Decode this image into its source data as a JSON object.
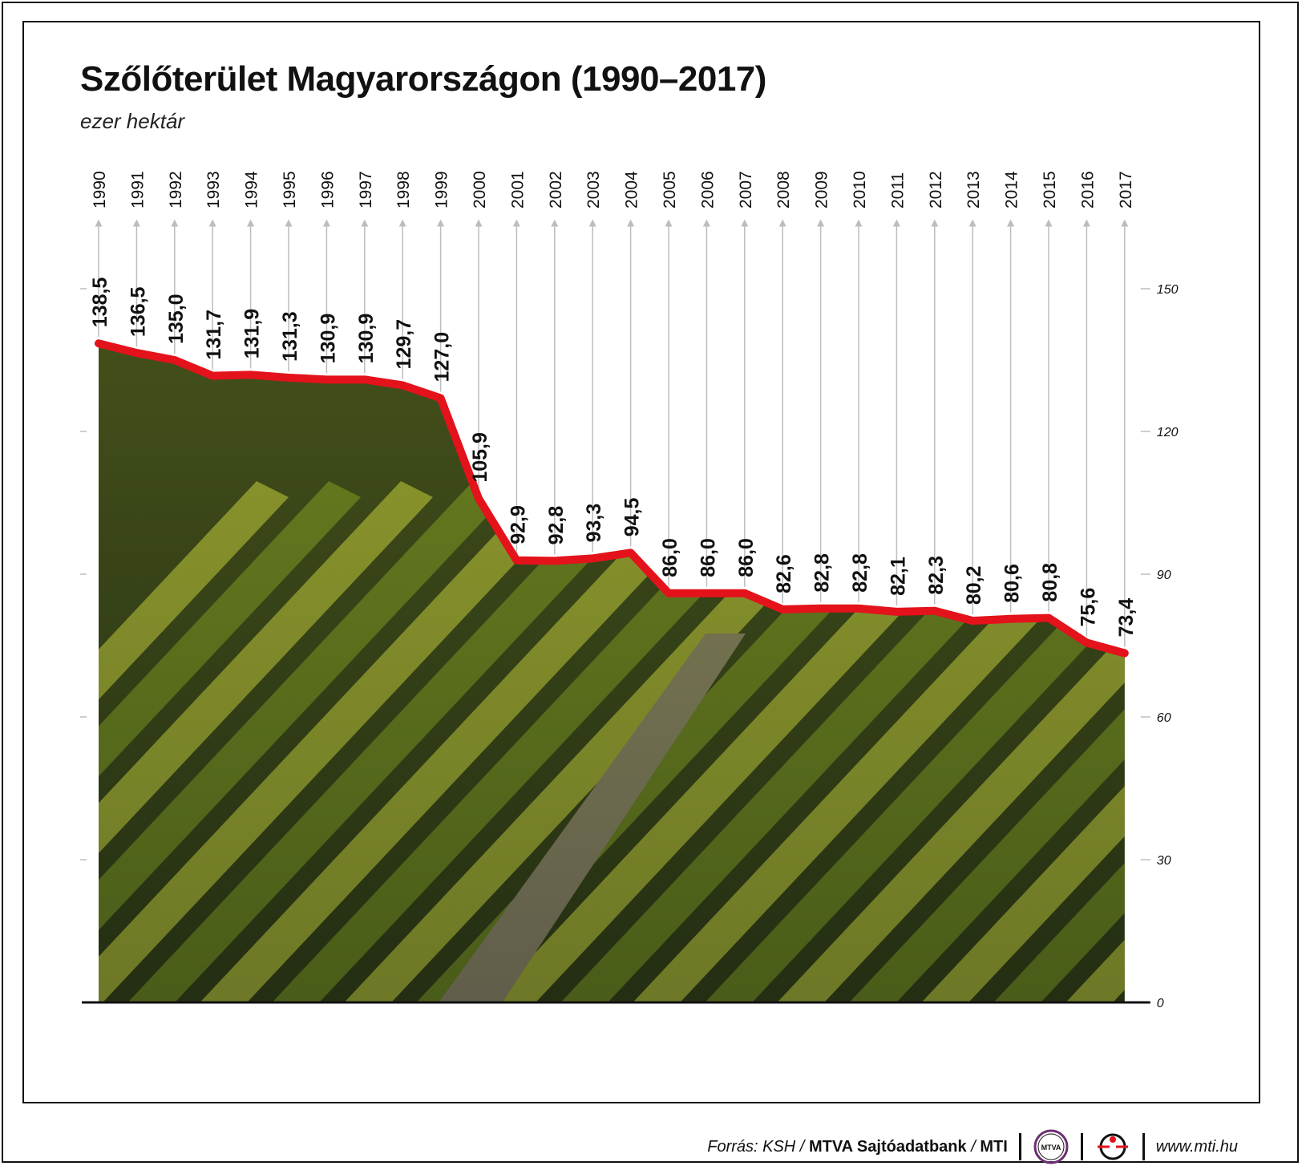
{
  "header": {
    "title": "Szőlőterület Magyarországon (1990–2017)",
    "subtitle": "ezer hektár"
  },
  "footer": {
    "source_prefix": "Forrás: KSH / ",
    "source_bold": "MTVA Sajtóadatbank",
    "source_sep": " / ",
    "source_mti": "MTI",
    "logo_text": "MTVA",
    "url": "www.mti.hu"
  },
  "colors": {
    "line": "#e3121b",
    "grid": "#bdbdbd",
    "text": "#111111",
    "vineyard_dark": "#1f2a12",
    "vineyard_green": "#6f8a1f",
    "vineyard_light": "#b9c23a",
    "wall": "#7d7468"
  },
  "chart_data": {
    "type": "line",
    "title": "Szőlőterület Magyarországon (1990–2017)",
    "ylabel": "ezer hektár",
    "x": [
      "1990",
      "1991",
      "1992",
      "1993",
      "1994",
      "1995",
      "1996",
      "1997",
      "1998",
      "1999",
      "2000",
      "2001",
      "2002",
      "2003",
      "2004",
      "2005",
      "2006",
      "2007",
      "2008",
      "2009",
      "2010",
      "2011",
      "2012",
      "2013",
      "2014",
      "2015",
      "2016",
      "2017"
    ],
    "values": [
      138.5,
      136.5,
      135.0,
      131.7,
      131.9,
      131.3,
      130.9,
      130.9,
      129.7,
      127.0,
      105.9,
      92.9,
      92.8,
      93.3,
      94.5,
      86.0,
      86.0,
      86.0,
      82.6,
      82.8,
      82.8,
      82.1,
      82.3,
      80.2,
      80.6,
      80.8,
      75.6,
      73.4
    ],
    "value_labels": [
      "138,5",
      "136,5",
      "135,0",
      "131,7",
      "131,9",
      "131,3",
      "130,9",
      "130,9",
      "129,7",
      "127,0",
      "105,9",
      "92,9",
      "92,8",
      "93,3",
      "94,5",
      "86,0",
      "86,0",
      "86,0",
      "82,6",
      "82,8",
      "82,8",
      "82,1",
      "82,3",
      "80,2",
      "80,6",
      "80,8",
      "75,6",
      "73,4"
    ],
    "ylim": [
      0,
      150
    ],
    "yticks": [
      "0",
      "30",
      "60",
      "90",
      "120",
      "150"
    ],
    "grid": true,
    "legend": "none"
  }
}
